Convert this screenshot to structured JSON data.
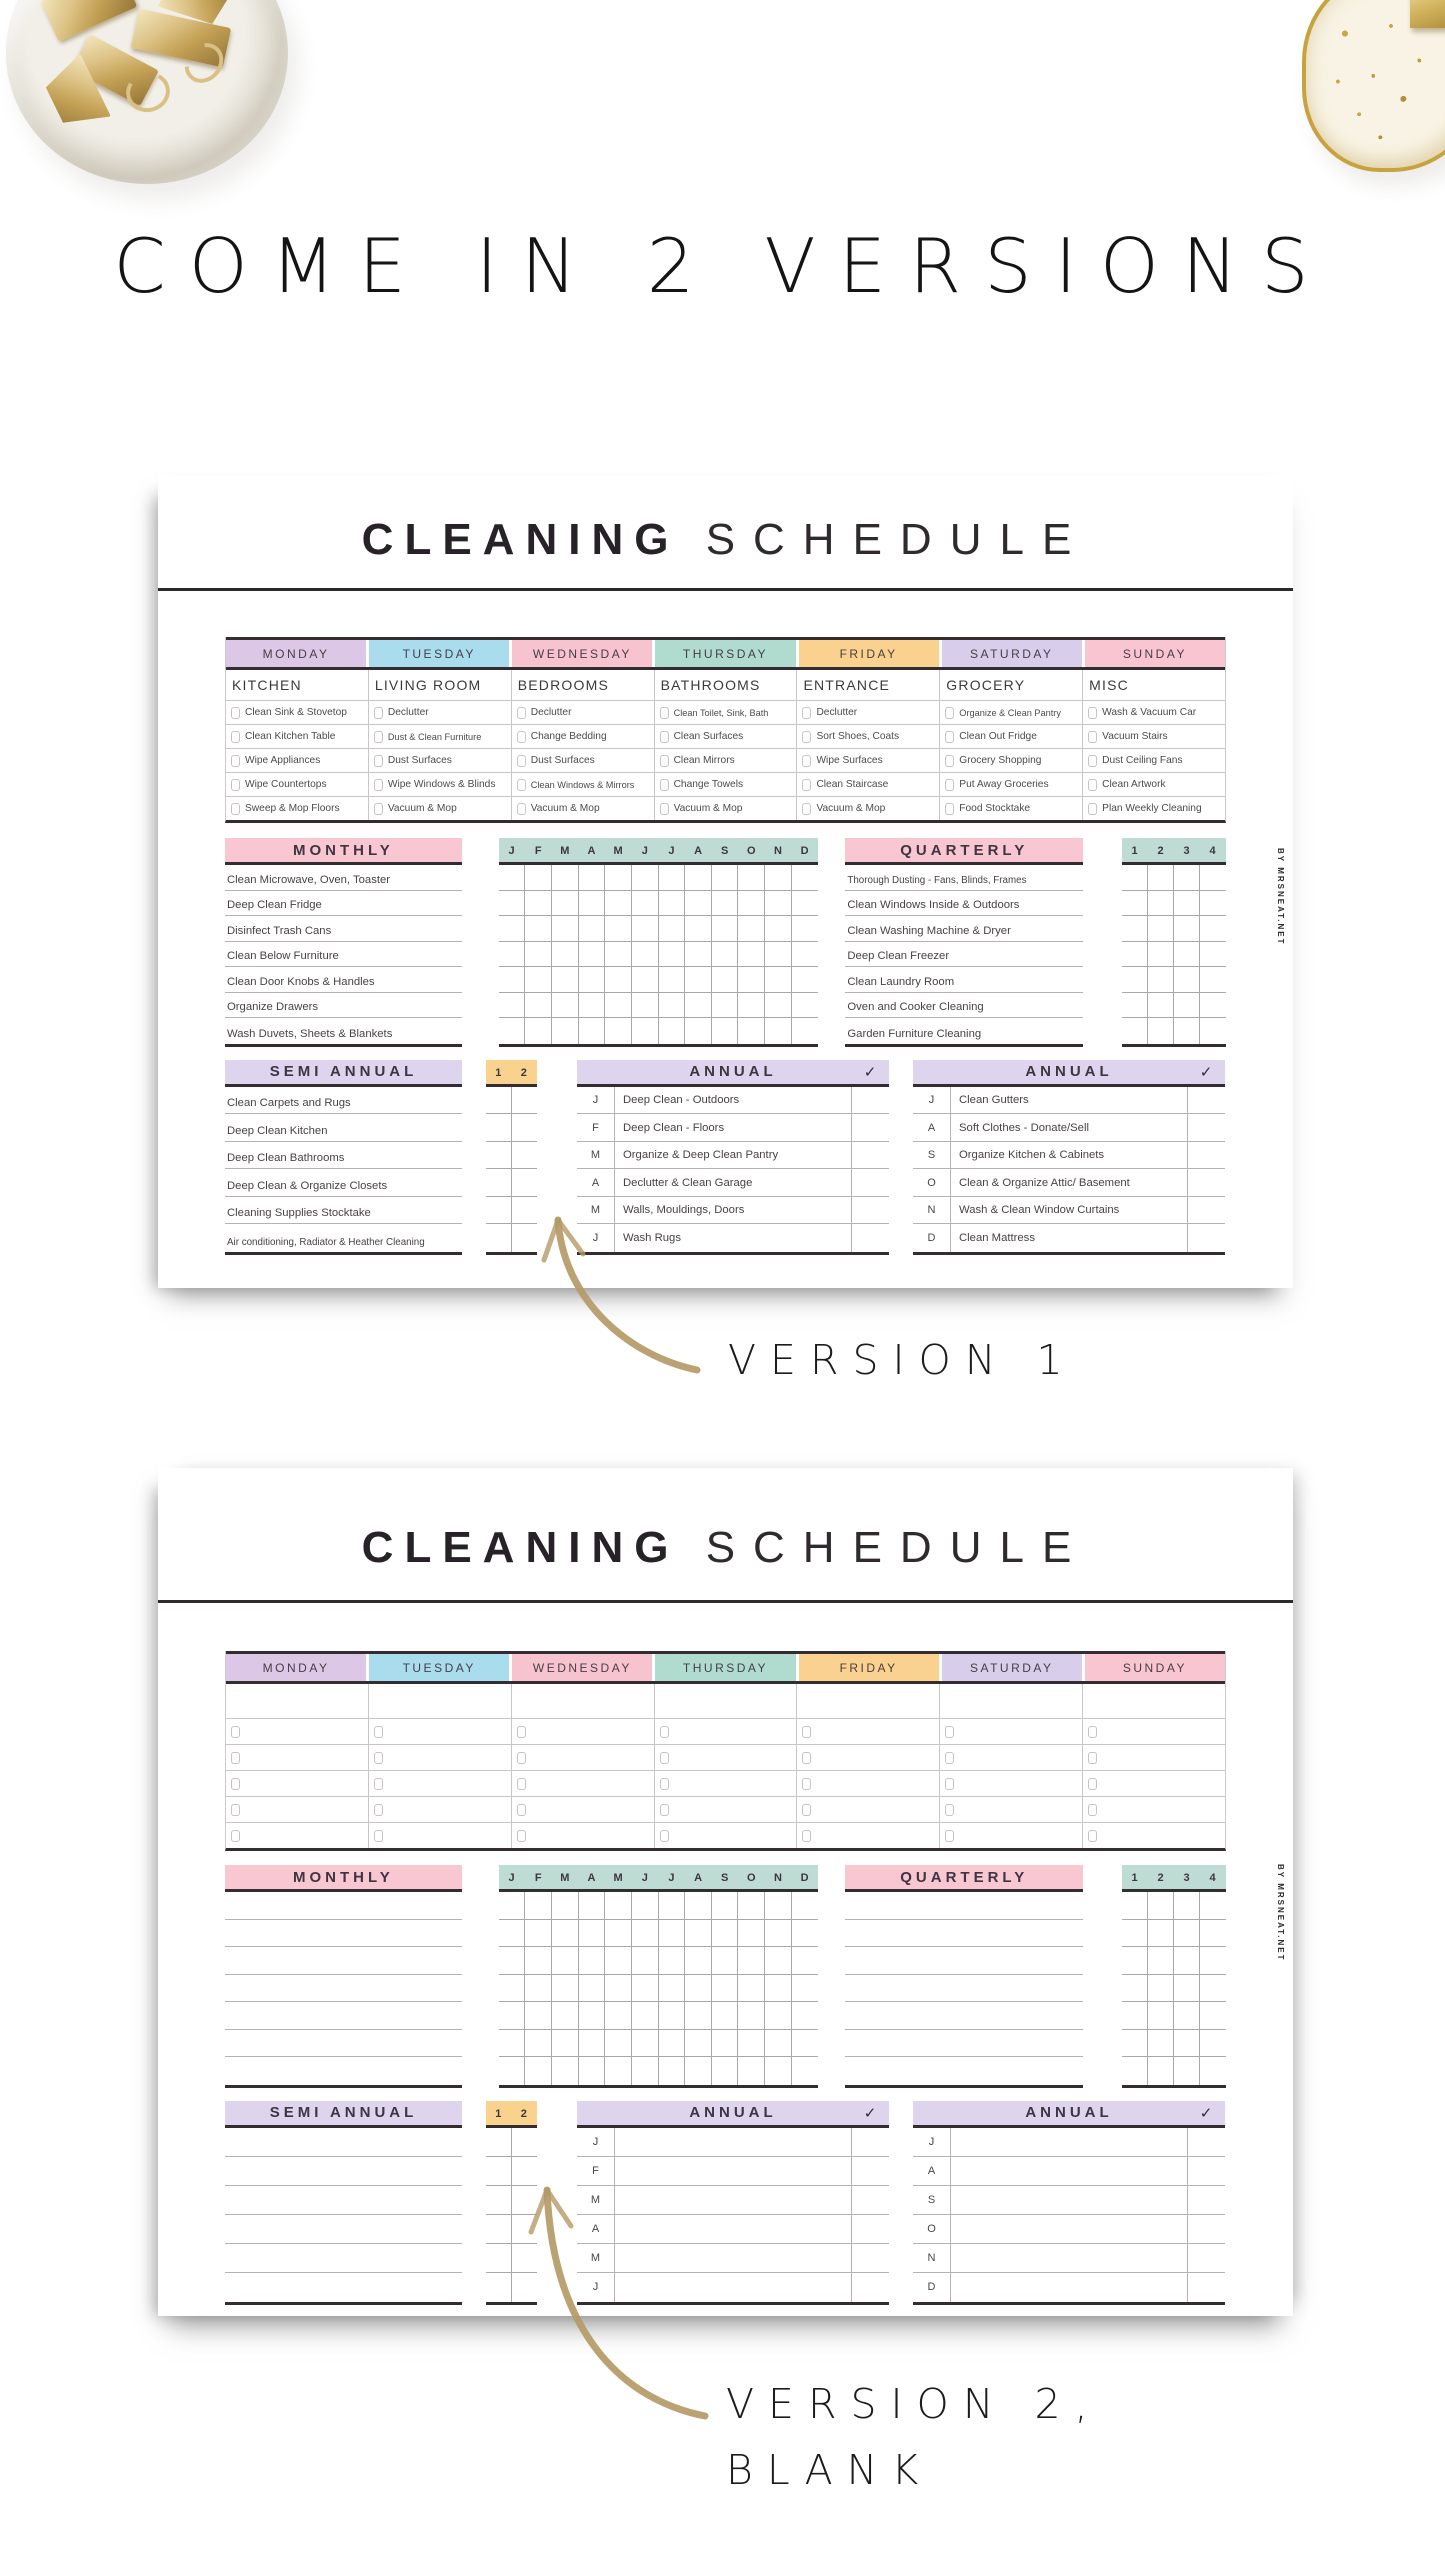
{
  "heading": "COME IN 2 VERSIONS",
  "captions": {
    "v1": "VERSION 1",
    "v2_line1": "VERSION 2,",
    "v2_line2": "BLANK"
  },
  "watermark": "BY MRSNEAT.NET",
  "colors": {
    "gold": "#b49a67",
    "header_pink": "#f8c7d2",
    "header_mint": "#bedcd4",
    "header_lavender": "#ded4ee",
    "header_peach": "#f9d28e"
  },
  "doc": {
    "title_bold": "CLEANING",
    "title_light": "SCHEDULE",
    "days": [
      {
        "label": "MONDAY",
        "color": "#dcc7e6"
      },
      {
        "label": "TUESDAY",
        "color": "#a9dcec"
      },
      {
        "label": "WEDNESDAY",
        "color": "#f7c3cf"
      },
      {
        "label": "THURSDAY",
        "color": "#b0dcd0"
      },
      {
        "label": "FRIDAY",
        "color": "#fad18e"
      },
      {
        "label": "SATURDAY",
        "color": "#d8cdea"
      },
      {
        "label": "SUNDAY",
        "color": "#f8c5d0"
      }
    ],
    "rooms": [
      "KITCHEN",
      "LIVING ROOM",
      "BEDROOMS",
      "BATHROOMS",
      "ENTRANCE",
      "GROCERY",
      "MISC"
    ],
    "weekly_tasks": [
      [
        "Clean Sink & Stovetop",
        "Clean Kitchen Table",
        "Wipe Appliances",
        "Wipe Countertops",
        "Sweep & Mop Floors"
      ],
      [
        "Declutter",
        "Dust & Clean Furniture",
        "Dust Surfaces",
        "Wipe Windows & Blinds",
        "Vacuum & Mop"
      ],
      [
        "Declutter",
        "Change Bedding",
        "Dust Surfaces",
        "Clean Windows & Mirrors",
        "Vacuum & Mop"
      ],
      [
        "Clean Toilet, Sink, Bath",
        "Clean Surfaces",
        "Clean Mirrors",
        "Change Towels",
        "Vacuum & Mop"
      ],
      [
        "Declutter",
        "Sort Shoes, Coats",
        "Wipe Surfaces",
        "Clean Staircase",
        "Vacuum & Mop"
      ],
      [
        "Organize & Clean Pantry",
        "Clean Out Fridge",
        "Grocery Shopping",
        "Put Away Groceries",
        "Food Stocktake"
      ],
      [
        "Wash & Vacuum Car",
        "Vacuum Stairs",
        "Dust Ceiling Fans",
        "Clean Artwork",
        "Plan Weekly Cleaning"
      ]
    ],
    "monthly": {
      "title": "MONTHLY",
      "items": [
        "Clean Microwave, Oven, Toaster",
        "Deep Clean Fridge",
        "Disinfect Trash Cans",
        "Clean Below Furniture",
        "Clean Door Knobs & Handles",
        "Organize Drawers",
        "Wash Duvets, Sheets & Blankets"
      ]
    },
    "month_grid": {
      "letters": [
        "J",
        "F",
        "M",
        "A",
        "M",
        "J",
        "J",
        "A",
        "S",
        "O",
        "N",
        "D"
      ]
    },
    "quarterly": {
      "title": "QUARTERLY",
      "items": [
        "Thorough Dusting - Fans, Blinds, Frames",
        "Clean Windows Inside & Outdoors",
        "Clean Washing Machine & Dryer",
        "Deep Clean Freezer",
        "Clean Laundry Room",
        "Oven and Cooker Cleaning",
        "Garden Furniture Cleaning"
      ],
      "grid_labels": [
        "1",
        "2",
        "3",
        "4"
      ]
    },
    "semi_annual": {
      "title": "SEMI ANNUAL",
      "items": [
        "Clean Carpets and Rugs",
        "Deep Clean Kitchen",
        "Deep Clean Bathrooms",
        "Deep Clean & Organize Closets",
        "Cleaning Supplies Stocktake",
        "Air conditioning, Radiator & Heather Cleaning"
      ],
      "grid_labels": [
        "1",
        "2"
      ]
    },
    "annual_left": {
      "title": "ANNUAL",
      "check": "✓",
      "months": [
        "J",
        "F",
        "M",
        "A",
        "M",
        "J"
      ],
      "tasks": [
        "Deep Clean - Outdoors",
        "Deep Clean - Floors",
        "Organize & Deep Clean Pantry",
        "Declutter & Clean Garage",
        "Walls, Mouldings, Doors",
        "Wash Rugs"
      ]
    },
    "annual_right": {
      "title": "ANNUAL",
      "check": "✓",
      "months": [
        "J",
        "A",
        "S",
        "O",
        "N",
        "D"
      ],
      "tasks": [
        "Clean Gutters",
        "Soft Clothes - Donate/Sell",
        "Organize Kitchen & Cabinets",
        "Clean & Organize Attic/ Basement",
        "Wash & Clean Window Curtains",
        "Clean Mattress"
      ]
    }
  }
}
